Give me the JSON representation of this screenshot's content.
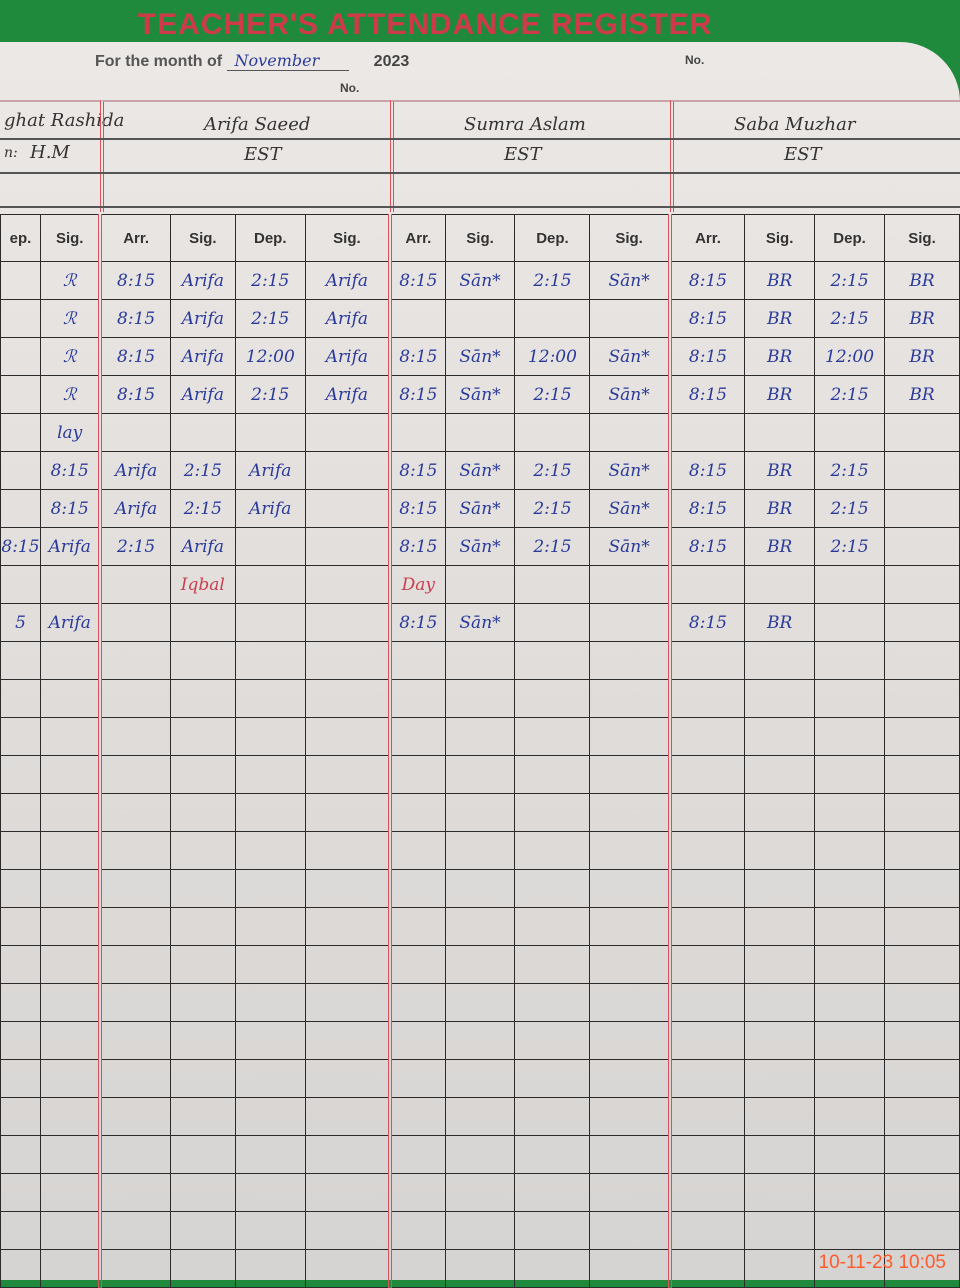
{
  "header": {
    "title": "TEACHER'S ATTENDANCE REGISTER",
    "month_label": "For the month of",
    "month_value": "November",
    "year": "2023",
    "no_label": "No."
  },
  "teachers": [
    {
      "name": "ghat Rashida",
      "designation": "H.M",
      "prefix": "n:"
    },
    {
      "name": "Arifa Saeed",
      "designation": "EST"
    },
    {
      "name": "Sumra Aslam",
      "designation": "EST"
    },
    {
      "name": "Saba Muzhar",
      "designation": "EST"
    }
  ],
  "columns": [
    "ep.",
    "Sig.",
    "Arr.",
    "Sig.",
    "Dep.",
    "Sig.",
    "Arr.",
    "Sig.",
    "Dep.",
    "Sig.",
    "Arr.",
    "Sig.",
    "Dep.",
    "Sig."
  ],
  "rows": [
    [
      "",
      "ℛ",
      "8:15",
      "Arifa",
      "2:15",
      "Arifa",
      "8:15",
      "Sān*",
      "2:15",
      "Sān*",
      "8:15",
      "BR",
      "2:15",
      "BR"
    ],
    [
      "",
      "ℛ",
      "8:15",
      "Arifa",
      "2:15",
      "Arifa",
      "",
      "",
      "",
      "",
      "8:15",
      "BR",
      "2:15",
      "BR"
    ],
    [
      "",
      "ℛ",
      "8:15",
      "Arifa",
      "12:00",
      "Arifa",
      "8:15",
      "Sān*",
      "12:00",
      "Sān*",
      "8:15",
      "BR",
      "12:00",
      "BR"
    ],
    [
      "",
      "ℛ",
      "8:15",
      "Arifa",
      "2:15",
      "Arifa",
      "8:15",
      "Sān*",
      "2:15",
      "Sān*",
      "8:15",
      "BR",
      "2:15",
      "BR"
    ],
    [
      "",
      "lay",
      "",
      "",
      "",
      "",
      "",
      "",
      "",
      "",
      "",
      "",
      "",
      ""
    ],
    [
      "",
      "8:15",
      "Arifa",
      "2:15",
      "Arifa",
      "",
      "8:15",
      "Sān*",
      "2:15",
      "Sān*",
      "8:15",
      "BR",
      "2:15",
      ""
    ],
    [
      "",
      "8:15",
      "Arifa",
      "2:15",
      "Arifa",
      "",
      "8:15",
      "Sān*",
      "2:15",
      "Sān*",
      "8:15",
      "BR",
      "2:15",
      ""
    ],
    [
      "8:15",
      "Arifa",
      "2:15",
      "Arifa",
      "",
      "",
      "8:15",
      "Sān*",
      "2:15",
      "Sān*",
      "8:15",
      "BR",
      "2:15",
      ""
    ],
    [
      "",
      "",
      "",
      "Iqbal",
      "",
      "",
      "Day",
      "",
      "",
      "",
      "",
      "",
      "",
      ""
    ],
    [
      "5",
      "Arifa",
      "",
      "",
      "",
      "",
      "8:15",
      "Sān*",
      "",
      "",
      "8:15",
      "BR",
      "",
      ""
    ]
  ],
  "empty_rows": 17,
  "red_note_row": 8,
  "timestamp": "10-11-23  10:05",
  "colors": {
    "ink": "#2a3a9a",
    "print_red": "#cf3a4a",
    "grid": "#2b2b2b",
    "background": "#1f8a3c",
    "timestamp": "#ff5a2a"
  }
}
